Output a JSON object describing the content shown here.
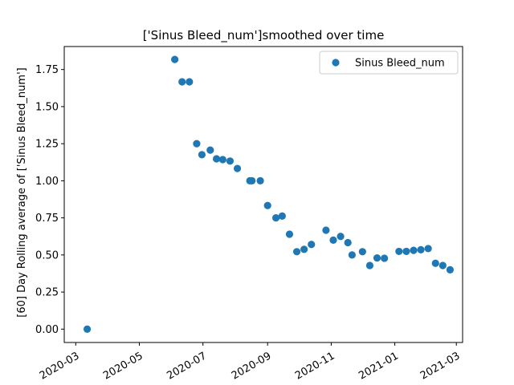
{
  "chart_data": {
    "type": "scatter",
    "title": "['Sinus Bleed_num']smoothed over time",
    "xlabel": "",
    "ylabel": "[60] Day Rolling average of ['Sinus Bleed_num']",
    "x_axis_type": "date",
    "xlim": [
      "2020-02-19",
      "2021-03-07"
    ],
    "ylim": [
      -0.09,
      1.905
    ],
    "xticks": [
      "2020-03",
      "2020-05",
      "2020-07",
      "2020-09",
      "2020-11",
      "2021-01",
      "2021-03"
    ],
    "yticks": [
      "0.00",
      "0.25",
      "0.50",
      "0.75",
      "1.00",
      "1.25",
      "1.50",
      "1.75"
    ],
    "legend": {
      "placement": "top-right"
    },
    "grid": false,
    "series": [
      {
        "name": "Sinus Bleed_num",
        "color": "#1f77b4",
        "marker": "circle",
        "points": [
          {
            "x": "2020-03-12",
            "y": 0.0
          },
          {
            "x": "2020-06-04",
            "y": 1.818
          },
          {
            "x": "2020-06-11",
            "y": 1.667
          },
          {
            "x": "2020-06-18",
            "y": 1.667
          },
          {
            "x": "2020-06-25",
            "y": 1.25
          },
          {
            "x": "2020-06-30",
            "y": 1.176
          },
          {
            "x": "2020-07-08",
            "y": 1.207
          },
          {
            "x": "2020-07-14",
            "y": 1.148
          },
          {
            "x": "2020-07-20",
            "y": 1.143
          },
          {
            "x": "2020-07-27",
            "y": 1.133
          },
          {
            "x": "2020-08-03",
            "y": 1.083
          },
          {
            "x": "2020-08-15",
            "y": 1.0
          },
          {
            "x": "2020-08-17",
            "y": 1.0
          },
          {
            "x": "2020-08-25",
            "y": 1.0
          },
          {
            "x": "2020-09-01",
            "y": 0.833
          },
          {
            "x": "2020-09-09",
            "y": 0.75
          },
          {
            "x": "2020-09-15",
            "y": 0.762
          },
          {
            "x": "2020-09-22",
            "y": 0.64
          },
          {
            "x": "2020-09-29",
            "y": 0.522
          },
          {
            "x": "2020-10-06",
            "y": 0.538
          },
          {
            "x": "2020-10-13",
            "y": 0.571
          },
          {
            "x": "2020-10-27",
            "y": 0.667
          },
          {
            "x": "2020-11-03",
            "y": 0.6
          },
          {
            "x": "2020-11-10",
            "y": 0.625
          },
          {
            "x": "2020-11-17",
            "y": 0.583
          },
          {
            "x": "2020-11-21",
            "y": 0.5
          },
          {
            "x": "2020-12-01",
            "y": 0.522
          },
          {
            "x": "2020-12-08",
            "y": 0.429
          },
          {
            "x": "2020-12-15",
            "y": 0.48
          },
          {
            "x": "2020-12-22",
            "y": 0.478
          },
          {
            "x": "2021-01-05",
            "y": 0.524
          },
          {
            "x": "2021-01-12",
            "y": 0.524
          },
          {
            "x": "2021-01-19",
            "y": 0.531
          },
          {
            "x": "2021-01-26",
            "y": 0.535
          },
          {
            "x": "2021-02-02",
            "y": 0.543
          },
          {
            "x": "2021-02-09",
            "y": 0.444
          },
          {
            "x": "2021-02-16",
            "y": 0.429
          },
          {
            "x": "2021-02-23",
            "y": 0.4
          }
        ]
      }
    ]
  }
}
